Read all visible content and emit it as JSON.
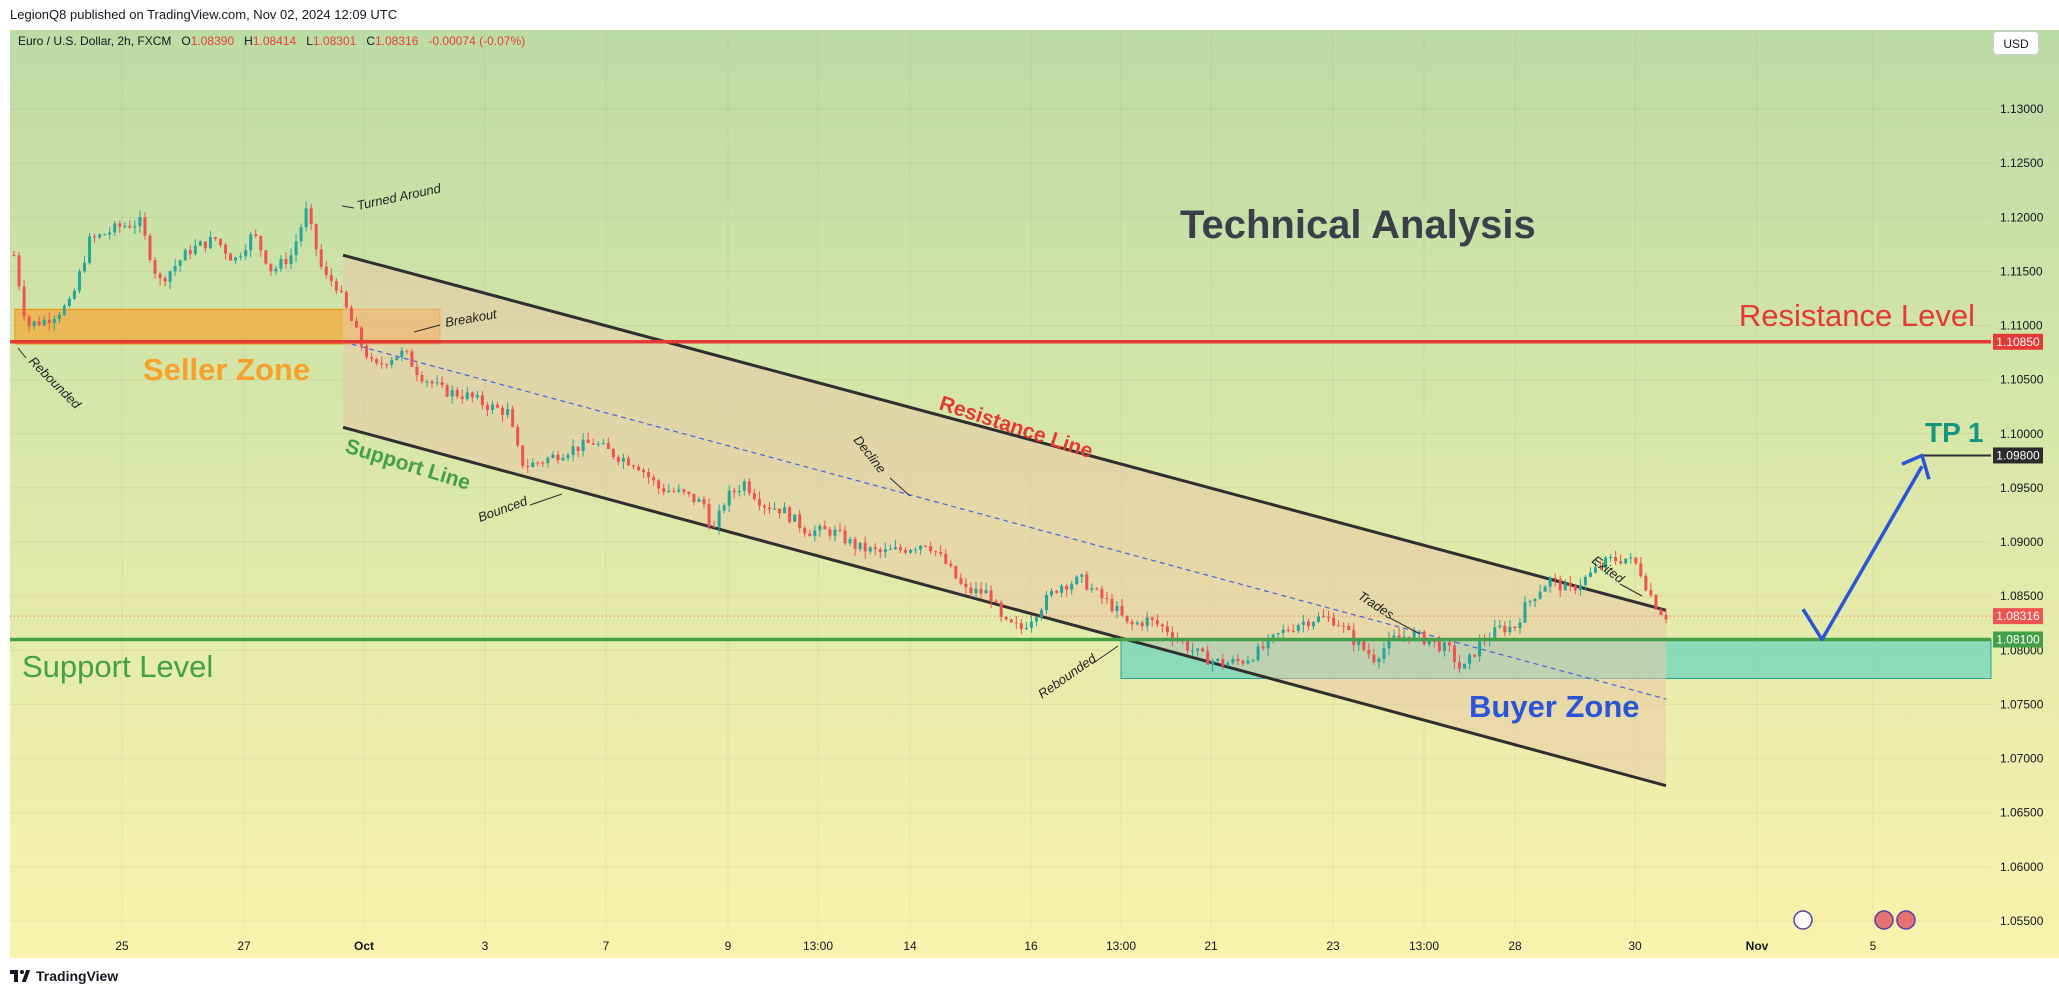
{
  "header": {
    "publish_line": "LegionQ8 published on TradingView.com, Nov 02, 2024 12:09 UTC"
  },
  "legend": {
    "symbol": "Euro / U.S. Dollar, 2h, FXCM",
    "open_label": "O",
    "open": "1.08390",
    "high_label": "H",
    "high": "1.08414",
    "low_label": "L",
    "low": "1.08301",
    "close_label": "C",
    "close": "1.08316",
    "change": "-0.00074 (-0.07%)"
  },
  "currency_button": "USD",
  "footer": {
    "brand": "TradingView"
  },
  "colors": {
    "resistance_red": "#e53935",
    "support_green": "#43a047",
    "seller_zone": "#f7a12a",
    "buyer_zone": "#4fd1c5",
    "tp_green": "#15967e",
    "buyer_blue": "#2b55d6",
    "channel_fill": "#e9c8a8",
    "candle_up": "#26a69a",
    "candle_down": "#ef5350"
  },
  "chart_data": {
    "type": "candlestick",
    "instrument": "EUR/USD",
    "ylim": [
      1.053,
      1.137
    ],
    "y_ticks": [
      "1.13000",
      "1.12500",
      "1.12000",
      "1.11500",
      "1.11000",
      "1.10500",
      "1.10000",
      "1.09500",
      "1.09000",
      "1.08500",
      "1.08000",
      "1.07500",
      "1.07000",
      "1.06500",
      "1.06000",
      "1.05500"
    ],
    "x_ticks": [
      "25",
      "27",
      "Oct",
      "3",
      "7",
      "9",
      "13:00",
      "14",
      "16",
      "13:00",
      "21",
      "23",
      "13:00",
      "28",
      "30",
      "Nov",
      "5"
    ],
    "price_path": [
      [
        0,
        1.1165
      ],
      [
        10,
        1.11
      ],
      [
        25,
        1.1105
      ],
      [
        45,
        1.112
      ],
      [
        60,
        1.1178
      ],
      [
        85,
        1.1192
      ],
      [
        100,
        1.1195
      ],
      [
        115,
        1.114
      ],
      [
        140,
        1.117
      ],
      [
        160,
        1.118
      ],
      [
        175,
        1.116
      ],
      [
        190,
        1.1185
      ],
      [
        205,
        1.115
      ],
      [
        220,
        1.1165
      ],
      [
        232,
        1.1205
      ],
      [
        238,
        1.118
      ],
      [
        246,
        1.1145
      ],
      [
        255,
        1.114
      ],
      [
        262,
        1.112
      ],
      [
        275,
        1.1085
      ],
      [
        286,
        1.106
      ],
      [
        298,
        1.107
      ],
      [
        310,
        1.1075
      ],
      [
        322,
        1.1055
      ],
      [
        340,
        1.104
      ],
      [
        360,
        1.1035
      ],
      [
        378,
        1.1025
      ],
      [
        392,
        1.102
      ],
      [
        400,
        1.0985
      ],
      [
        405,
        1.097
      ],
      [
        420,
        1.0975
      ],
      [
        440,
        1.0985
      ],
      [
        460,
        1.0992
      ],
      [
        478,
        1.098
      ],
      [
        495,
        1.0972
      ],
      [
        512,
        1.095
      ],
      [
        530,
        1.0945
      ],
      [
        548,
        1.0935
      ],
      [
        555,
        1.0908
      ],
      [
        565,
        1.094
      ],
      [
        580,
        1.0955
      ],
      [
        595,
        1.0935
      ],
      [
        610,
        1.093
      ],
      [
        630,
        1.091
      ],
      [
        650,
        1.091
      ],
      [
        670,
        1.0895
      ],
      [
        688,
        1.089
      ],
      [
        705,
        1.0893
      ],
      [
        725,
        1.09
      ],
      [
        740,
        1.088
      ],
      [
        755,
        1.0855
      ],
      [
        775,
        1.0853
      ],
      [
        785,
        1.0825
      ],
      [
        800,
        1.082
      ],
      [
        815,
        1.084
      ],
      [
        830,
        1.086
      ],
      [
        848,
        1.0865
      ],
      [
        862,
        1.085
      ],
      [
        875,
        1.0838
      ],
      [
        885,
        1.0822
      ],
      [
        900,
        1.0828
      ],
      [
        915,
        1.082
      ],
      [
        930,
        1.0805
      ],
      [
        945,
        1.0793
      ],
      [
        960,
        1.0788
      ],
      [
        975,
        1.079
      ],
      [
        990,
        1.08
      ],
      [
        1005,
        1.0815
      ],
      [
        1020,
        1.0825
      ],
      [
        1035,
        1.083
      ],
      [
        1050,
        1.0828
      ],
      [
        1065,
        1.0808
      ],
      [
        1080,
        1.0793
      ],
      [
        1095,
        1.081
      ],
      [
        1110,
        1.0815
      ],
      [
        1125,
        1.0808
      ],
      [
        1140,
        1.08
      ],
      [
        1150,
        1.078
      ],
      [
        1165,
        1.0808
      ],
      [
        1180,
        1.082
      ],
      [
        1192,
        1.0822
      ],
      [
        1200,
        1.084
      ],
      [
        1210,
        1.0855
      ],
      [
        1220,
        1.0865
      ],
      [
        1235,
        1.0855
      ],
      [
        1252,
        1.087
      ],
      [
        1266,
        1.0883
      ],
      [
        1280,
        1.0885
      ],
      [
        1290,
        1.0878
      ],
      [
        1298,
        1.0855
      ],
      [
        1306,
        1.0838
      ],
      [
        1312,
        1.0832
      ]
    ],
    "annotations": {
      "title": "Technical Analysis",
      "resistance_level": {
        "label": "Resistance Level",
        "price": 1.1085,
        "price_label": "1.10850"
      },
      "support_level": {
        "label": "Support Level",
        "price": 1.081,
        "price_label": "1.08100"
      },
      "tp1": {
        "label": "TP 1",
        "price": 1.098,
        "price_label": "1.09800"
      },
      "last_price": {
        "price": 1.08316,
        "price_label": "1.08316"
      },
      "seller_zone": {
        "label": "Seller Zone",
        "top": 1.1115,
        "bottom": 1.1083
      },
      "buyer_zone": {
        "label": "Buyer Zone",
        "top": 1.081,
        "bottom": 1.0774
      },
      "resistance_line": {
        "label": "Resistance Line"
      },
      "support_line": {
        "label": "Support Line"
      },
      "notes": [
        "Turned Around",
        "Breakout",
        "Rebounded",
        "Bounced",
        "Decline",
        "Trades",
        "Rebounded",
        "Exited"
      ]
    }
  }
}
